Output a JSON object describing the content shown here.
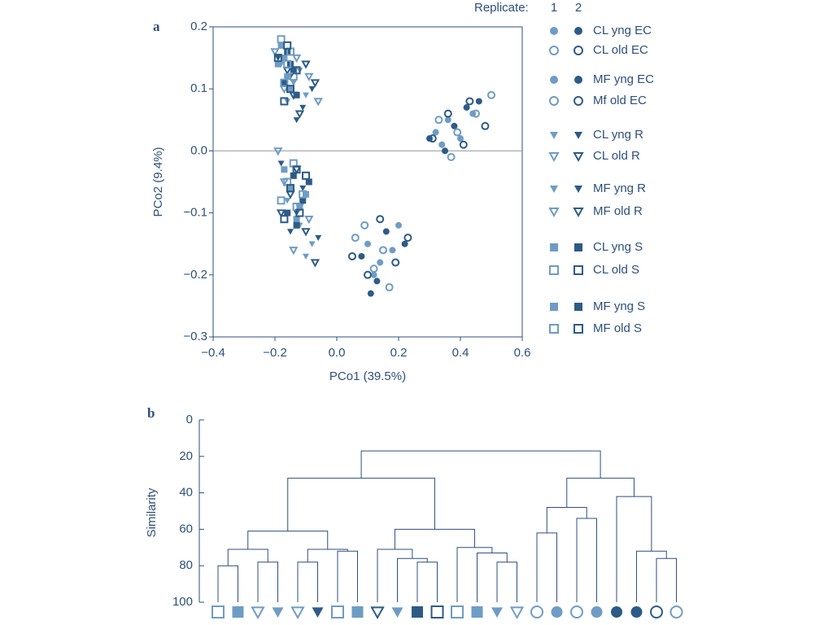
{
  "chart_data": [
    {
      "type": "scatter",
      "panel": "a",
      "xlabel": "PCo1 (39.5%)",
      "ylabel": "PCo2 (9.4%)",
      "xlim": [
        -0.4,
        0.6
      ],
      "ylim": [
        -0.3,
        0.2
      ],
      "xticks": [
        {
          "value": -0.4,
          "label": "−0.4"
        },
        {
          "value": -0.2,
          "label": "−0.2"
        },
        {
          "value": 0,
          "label": "0.0"
        },
        0.2,
        0.4,
        0.6
      ],
      "yticks": [
        {
          "value": -0.3,
          "label": "−0.3"
        },
        {
          "value": -0.2,
          "label": "−0.2"
        },
        {
          "value": -0.1,
          "label": "−0.1"
        },
        {
          "value": 0,
          "label": "0.0"
        },
        0.1,
        0.2
      ],
      "legend_title": "Replicate:",
      "replicates": [
        "1",
        "2"
      ],
      "replicate_colors": [
        "#6f9cc4",
        "#2d5b86"
      ],
      "groups": [
        {
          "name": "CL yng EC",
          "marker": "circle",
          "open": false,
          "series": [
            {
              "x": [
                0.32,
                0.36,
                0.4,
                0.34,
                0.44
              ],
              "y": [
                0.03,
                0.05,
                0.02,
                0.01,
                0.06
              ]
            },
            {
              "x": [
                0.38,
                0.42,
                0.35,
                0.46,
                0.3
              ],
              "y": [
                0.04,
                0.07,
                0.0,
                0.08,
                0.02
              ]
            }
          ]
        },
        {
          "name": "CL old EC",
          "marker": "circle",
          "open": true,
          "series": [
            {
              "x": [
                0.33,
                0.39,
                0.45,
                0.5,
                0.37
              ],
              "y": [
                0.05,
                0.03,
                0.06,
                0.09,
                -0.01
              ]
            },
            {
              "x": [
                0.41,
                0.36,
                0.48,
                0.31,
                0.43
              ],
              "y": [
                0.01,
                0.06,
                0.04,
                0.02,
                0.08
              ]
            }
          ]
        },
        {
          "name": "MF yng EC",
          "marker": "circle",
          "open": false,
          "series": [
            {
              "x": [
                0.1,
                0.14,
                0.18,
                0.12,
                0.2
              ],
              "y": [
                -0.15,
                -0.18,
                -0.16,
                -0.2,
                -0.12
              ]
            },
            {
              "x": [
                0.08,
                0.16,
                0.13,
                0.22,
                0.11
              ],
              "y": [
                -0.17,
                -0.13,
                -0.21,
                -0.15,
                -0.23
              ]
            }
          ]
        },
        {
          "name": "Mf old EC",
          "marker": "circle",
          "open": true,
          "series": [
            {
              "x": [
                0.06,
                0.12,
                0.17,
                0.09,
                0.15
              ],
              "y": [
                -0.14,
                -0.19,
                -0.22,
                -0.12,
                -0.16
              ]
            },
            {
              "x": [
                0.14,
                0.19,
                0.1,
                0.23,
                0.05
              ],
              "y": [
                -0.11,
                -0.18,
                -0.2,
                -0.14,
                -0.17
              ]
            }
          ]
        },
        {
          "name": "CL yng R",
          "marker": "triangle",
          "open": false,
          "series": [
            {
              "x": [
                -0.18,
                -0.14,
                -0.1,
                -0.16,
                -0.12
              ],
              "y": [
                0.14,
                0.11,
                0.09,
                0.08,
                0.13
              ]
            },
            {
              "x": [
                -0.15,
                -0.11,
                -0.08,
                -0.19,
                -0.13
              ],
              "y": [
                0.12,
                0.07,
                0.1,
                0.15,
                0.05
              ]
            }
          ]
        },
        {
          "name": "CL old R",
          "marker": "triangle",
          "open": true,
          "series": [
            {
              "x": [
                -0.17,
                -0.13,
                -0.09,
                -0.2,
                -0.06
              ],
              "y": [
                0.1,
                0.15,
                0.12,
                0.16,
                0.08
              ]
            },
            {
              "x": [
                -0.12,
                -0.16,
                -0.07,
                -0.14,
                -0.1
              ],
              "y": [
                0.06,
                0.13,
                0.11,
                0.09,
                0.14
              ]
            }
          ]
        },
        {
          "name": "MF yng R",
          "marker": "triangle",
          "open": false,
          "series": [
            {
              "x": [
                -0.16,
                -0.12,
                -0.08,
                -0.14,
                -0.1
              ],
              "y": [
                -0.08,
                -0.12,
                -0.15,
                -0.04,
                -0.17
              ]
            },
            {
              "x": [
                -0.18,
                -0.13,
                -0.06,
                -0.11,
                -0.15
              ],
              "y": [
                -0.02,
                -0.1,
                -0.14,
                -0.06,
                -0.13
              ]
            }
          ]
        },
        {
          "name": "MF old R",
          "marker": "triangle",
          "open": true,
          "series": [
            {
              "x": [
                -0.17,
                -0.14,
                -0.09,
                -0.12,
                -0.19
              ],
              "y": [
                -0.05,
                -0.16,
                -0.11,
                -0.09,
                0.0
              ]
            },
            {
              "x": [
                -0.15,
                -0.1,
                -0.13,
                -0.07,
                -0.18
              ],
              "y": [
                -0.07,
                -0.13,
                -0.03,
                -0.18,
                -0.1
              ]
            }
          ]
        },
        {
          "name": "CL yng S",
          "marker": "square",
          "open": false,
          "series": [
            {
              "x": [
                -0.15,
                -0.12,
                -0.17,
                -0.13,
                -0.1
              ],
              "y": [
                -0.06,
                -0.09,
                -0.03,
                -0.11,
                -0.07
              ]
            },
            {
              "x": [
                -0.14,
                -0.11,
                -0.16,
                -0.09,
                -0.13
              ],
              "y": [
                -0.04,
                -0.08,
                -0.1,
                -0.05,
                -0.12
              ]
            }
          ]
        },
        {
          "name": "CL old S",
          "marker": "square",
          "open": true,
          "series": [
            {
              "x": [
                -0.13,
                -0.16,
                -0.11,
                -0.14,
                -0.18
              ],
              "y": [
                -0.09,
                -0.05,
                -0.07,
                -0.02,
                -0.08
              ]
            },
            {
              "x": [
                -0.12,
                -0.15,
                -0.1,
                -0.17,
                -0.13
              ],
              "y": [
                -0.1,
                -0.06,
                -0.04,
                -0.11,
                -0.03
              ]
            }
          ]
        },
        {
          "name": "MF yng S",
          "marker": "square",
          "open": false,
          "series": [
            {
              "x": [
                -0.18,
                -0.17,
                -0.16,
                -0.19,
                -0.15
              ],
              "y": [
                0.17,
                0.15,
                0.12,
                0.14,
                0.1
              ]
            },
            {
              "x": [
                -0.16,
                -0.14,
                -0.17,
                -0.13,
                -0.15
              ],
              "y": [
                0.16,
                0.13,
                0.11,
                0.09,
                0.14
              ]
            }
          ]
        },
        {
          "name": "MF old S",
          "marker": "square",
          "open": true,
          "series": [
            {
              "x": [
                -0.18,
                -0.15,
                -0.17,
                -0.14,
                -0.16
              ],
              "y": [
                0.18,
                0.16,
                0.11,
                0.12,
                0.14
              ]
            },
            {
              "x": [
                -0.19,
                -0.16,
                -0.13,
                -0.15,
                -0.17
              ],
              "y": [
                0.15,
                0.17,
                0.13,
                0.1,
                0.08
              ]
            }
          ]
        }
      ]
    },
    {
      "type": "dendrogram",
      "panel": "b",
      "ylabel": "Similarity",
      "ylim": [
        0,
        100
      ],
      "yticks": [
        0,
        20,
        40,
        60,
        80,
        100
      ],
      "color": "#2d4f7c",
      "leaves": [
        {
          "marker": "square",
          "open": true,
          "color": "#6f9cc4"
        },
        {
          "marker": "square",
          "open": false,
          "color": "#6f9cc4"
        },
        {
          "marker": "triangle",
          "open": true,
          "color": "#6f9cc4"
        },
        {
          "marker": "triangle",
          "open": false,
          "color": "#6f9cc4"
        },
        {
          "marker": "triangle",
          "open": true,
          "color": "#6f9cc4"
        },
        {
          "marker": "triangle",
          "open": false,
          "color": "#2d5b86"
        },
        {
          "marker": "square",
          "open": true,
          "color": "#6f9cc4"
        },
        {
          "marker": "square",
          "open": false,
          "color": "#6f9cc4"
        },
        {
          "marker": "triangle",
          "open": true,
          "color": "#2d5b86"
        },
        {
          "marker": "triangle",
          "open": false,
          "color": "#6f9cc4"
        },
        {
          "marker": "square",
          "open": false,
          "color": "#2d5b86"
        },
        {
          "marker": "square",
          "open": true,
          "color": "#2d5b86"
        },
        {
          "marker": "square",
          "open": true,
          "color": "#6f9cc4"
        },
        {
          "marker": "square",
          "open": false,
          "color": "#6f9cc4"
        },
        {
          "marker": "triangle",
          "open": false,
          "color": "#6f9cc4"
        },
        {
          "marker": "triangle",
          "open": true,
          "color": "#6f9cc4"
        },
        {
          "marker": "circle",
          "open": true,
          "color": "#6f9cc4"
        },
        {
          "marker": "circle",
          "open": false,
          "color": "#6f9cc4"
        },
        {
          "marker": "circle",
          "open": true,
          "color": "#6f9cc4"
        },
        {
          "marker": "circle",
          "open": false,
          "color": "#6f9cc4"
        },
        {
          "marker": "circle",
          "open": false,
          "color": "#2d5b86"
        },
        {
          "marker": "circle",
          "open": false,
          "color": "#2d5b86"
        },
        {
          "marker": "circle",
          "open": true,
          "color": "#2d5b86"
        },
        {
          "marker": "circle",
          "open": true,
          "color": "#6f9cc4"
        }
      ],
      "merges": [
        [
          0,
          1,
          80
        ],
        [
          2,
          3,
          78
        ],
        [
          24,
          25,
          71
        ],
        [
          4,
          5,
          78
        ],
        [
          6,
          7,
          72
        ],
        [
          27,
          28,
          71
        ],
        [
          26,
          29,
          61
        ],
        [
          10,
          11,
          78
        ],
        [
          9,
          31,
          76
        ],
        [
          8,
          32,
          71
        ],
        [
          14,
          15,
          78
        ],
        [
          13,
          34,
          73
        ],
        [
          12,
          35,
          70
        ],
        [
          33,
          36,
          60
        ],
        [
          30,
          37,
          32
        ],
        [
          16,
          17,
          62
        ],
        [
          18,
          19,
          54
        ],
        [
          39,
          40,
          48
        ],
        [
          22,
          23,
          76
        ],
        [
          21,
          42,
          72
        ],
        [
          20,
          43,
          42
        ],
        [
          41,
          44,
          32
        ],
        [
          38,
          45,
          17
        ]
      ]
    }
  ]
}
